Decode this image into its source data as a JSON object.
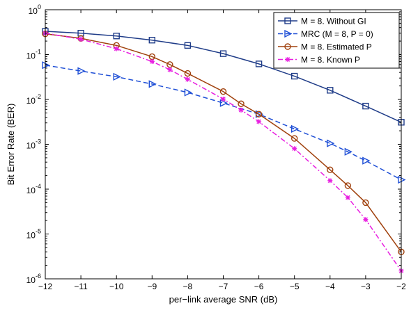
{
  "chart_data": {
    "type": "line",
    "title": "",
    "xlabel": "per−link average SNR (dB)",
    "ylabel": "Bit Error Rate (BER)",
    "xlim": [
      -12,
      -2
    ],
    "ylim": [
      1e-06,
      1
    ],
    "yscale": "log",
    "xticks": [
      -12,
      -11,
      -10,
      -9,
      -8,
      -7,
      -6,
      -5,
      -4,
      -3,
      -2
    ],
    "xtick_labels": [
      "−12",
      "−11",
      "−10",
      "−9",
      "−8",
      "−7",
      "−6",
      "−5",
      "−4",
      "−3",
      "−2"
    ],
    "yticks": [
      {
        "base": "10",
        "exp": "-6"
      },
      {
        "base": "10",
        "exp": "-5"
      },
      {
        "base": "10",
        "exp": "-4"
      },
      {
        "base": "10",
        "exp": "-3"
      },
      {
        "base": "10",
        "exp": "-2"
      },
      {
        "base": "10",
        "exp": "-1"
      },
      {
        "base": "10",
        "exp": "0"
      }
    ],
    "grid": false,
    "legend_position": "top-right",
    "series": [
      {
        "name": "M = 8. Without GI",
        "color": "#1f3c88",
        "line": "solid",
        "marker": "square",
        "x": [
          -12,
          -11,
          -10,
          -9,
          -8,
          -7,
          -6,
          -5,
          -4,
          -3,
          -2
        ],
        "y": [
          0.33,
          0.3,
          0.26,
          0.21,
          0.16,
          0.105,
          0.062,
          0.033,
          0.016,
          0.0071,
          0.0031
        ]
      },
      {
        "name": "MRC (M = 8, P = 0)",
        "color": "#1f4fd6",
        "line": "dashed",
        "marker": "triangle-right",
        "x": [
          -12,
          -11,
          -10,
          -9,
          -8,
          -7,
          -6,
          -5,
          -4,
          -3.5,
          -3,
          -2
        ],
        "y": [
          0.058,
          0.043,
          0.032,
          0.022,
          0.0143,
          0.0083,
          0.0047,
          0.0022,
          0.00105,
          0.00068,
          0.00043,
          0.000162
        ]
      },
      {
        "name": "M = 8. Estimated P",
        "color": "#a0410d",
        "line": "solid",
        "marker": "circle",
        "x": [
          -12,
          -11,
          -10,
          -9,
          -8.5,
          -8,
          -7,
          -6.5,
          -6,
          -5,
          -4,
          -3.5,
          -3,
          -2
        ],
        "y": [
          0.29,
          0.23,
          0.16,
          0.09,
          0.06,
          0.038,
          0.015,
          0.008,
          0.0047,
          0.00135,
          0.00027,
          0.00012,
          5e-05,
          4e-06
        ]
      },
      {
        "name": "M = 8. Known P",
        "color": "#e81ee0",
        "line": "dashdot",
        "marker": "asterisk",
        "x": [
          -12,
          -11,
          -10,
          -9,
          -8.5,
          -8,
          -7,
          -6.5,
          -6,
          -5,
          -4,
          -3.5,
          -3,
          -2
        ],
        "y": [
          0.3,
          0.22,
          0.135,
          0.07,
          0.046,
          0.028,
          0.0102,
          0.0058,
          0.0032,
          0.0008,
          0.000155,
          6.5e-05,
          2.1e-05,
          1.5e-06
        ]
      }
    ]
  }
}
